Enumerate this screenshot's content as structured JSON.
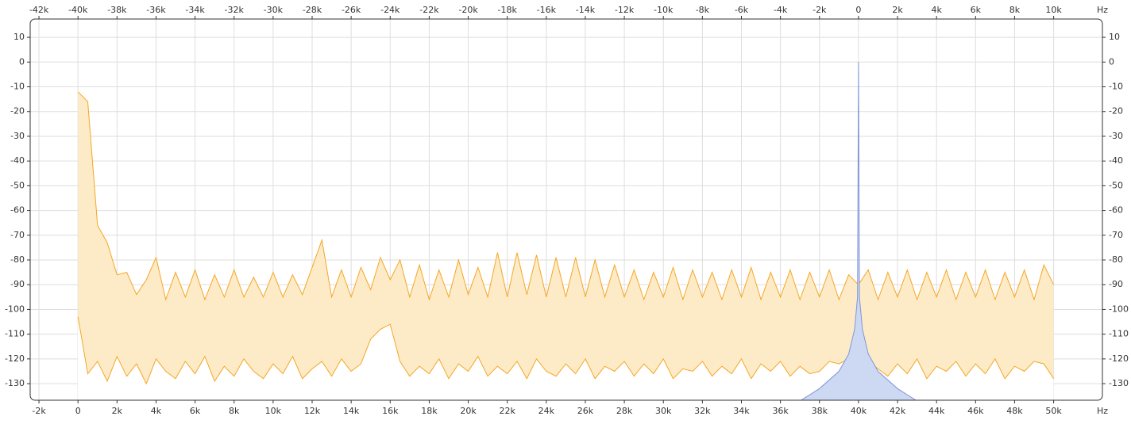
{
  "chart_data": {
    "type": "area",
    "x_unit": "Hz",
    "grid": true,
    "xlim": [
      -2450,
      52500
    ],
    "x2lim": [
      -42450,
      12500
    ],
    "ylim": [
      -136.7,
      17.4
    ],
    "xticks": [
      {
        "value": -2000,
        "label": "-2k"
      },
      0,
      {
        "value": 2000,
        "label": "2k"
      },
      {
        "value": 4000,
        "label": "4k"
      },
      {
        "value": 6000,
        "label": "6k"
      },
      {
        "value": 8000,
        "label": "8k"
      },
      {
        "value": 10000,
        "label": "10k"
      },
      {
        "value": 12000,
        "label": "12k"
      },
      {
        "value": 14000,
        "label": "14k"
      },
      {
        "value": 16000,
        "label": "16k"
      },
      {
        "value": 18000,
        "label": "18k"
      },
      {
        "value": 20000,
        "label": "20k"
      },
      {
        "value": 22000,
        "label": "22k"
      },
      {
        "value": 24000,
        "label": "24k"
      },
      {
        "value": 26000,
        "label": "26k"
      },
      {
        "value": 28000,
        "label": "28k"
      },
      {
        "value": 30000,
        "label": "30k"
      },
      {
        "value": 32000,
        "label": "32k"
      },
      {
        "value": 34000,
        "label": "34k"
      },
      {
        "value": 36000,
        "label": "36k"
      },
      {
        "value": 38000,
        "label": "38k"
      },
      {
        "value": 40000,
        "label": "40k"
      },
      {
        "value": 42000,
        "label": "42k"
      },
      {
        "value": 44000,
        "label": "44k"
      },
      {
        "value": 46000,
        "label": "46k"
      },
      {
        "value": 48000,
        "label": "48k"
      },
      {
        "value": 50000,
        "label": "50k"
      }
    ],
    "x2ticks": [
      {
        "value": -42000,
        "label": "-42k"
      },
      {
        "value": -40000,
        "label": "-40k"
      },
      {
        "value": -38000,
        "label": "-38k"
      },
      {
        "value": -36000,
        "label": "-36k"
      },
      {
        "value": -34000,
        "label": "-34k"
      },
      {
        "value": -32000,
        "label": "-32k"
      },
      {
        "value": -30000,
        "label": "-30k"
      },
      {
        "value": -28000,
        "label": "-28k"
      },
      {
        "value": -26000,
        "label": "-26k"
      },
      {
        "value": -24000,
        "label": "-24k"
      },
      {
        "value": -22000,
        "label": "-22k"
      },
      {
        "value": -20000,
        "label": "-20k"
      },
      {
        "value": -18000,
        "label": "-18k"
      },
      {
        "value": -16000,
        "label": "-16k"
      },
      {
        "value": -14000,
        "label": "-14k"
      },
      {
        "value": -12000,
        "label": "-12k"
      },
      {
        "value": -10000,
        "label": "-10k"
      },
      {
        "value": -8000,
        "label": "-8k"
      },
      {
        "value": -6000,
        "label": "-6k"
      },
      {
        "value": -4000,
        "label": "-4k"
      },
      {
        "value": -2000,
        "label": "-2k"
      },
      0,
      {
        "value": 2000,
        "label": "2k"
      },
      {
        "value": 4000,
        "label": "4k"
      },
      {
        "value": 6000,
        "label": "6k"
      },
      {
        "value": 8000,
        "label": "8k"
      },
      {
        "value": 10000,
        "label": "10k"
      }
    ],
    "yticks": [
      10,
      0,
      -10,
      -20,
      -30,
      -40,
      -50,
      -60,
      -70,
      -80,
      -90,
      -100,
      -110,
      -120,
      -130
    ],
    "x": [
      0,
      500,
      1000,
      1500,
      2000,
      2500,
      3000,
      3500,
      4000,
      4500,
      5000,
      5500,
      6000,
      6500,
      7000,
      7500,
      8000,
      8500,
      9000,
      9500,
      10000,
      10500,
      11000,
      11500,
      12000,
      12500,
      13000,
      13500,
      14000,
      14500,
      15000,
      15500,
      16000,
      16500,
      17000,
      17500,
      18000,
      18500,
      19000,
      19500,
      20000,
      20500,
      21000,
      21500,
      22000,
      22500,
      23000,
      23500,
      24000,
      24500,
      25000,
      25500,
      26000,
      26500,
      27000,
      27500,
      28000,
      28500,
      29000,
      29500,
      30000,
      30500,
      31000,
      31500,
      32000,
      32500,
      33000,
      33500,
      34000,
      34500,
      35000,
      35500,
      36000,
      36500,
      37000,
      37500,
      38000,
      38500,
      39000,
      39500,
      40000,
      40500,
      41000,
      41500,
      42000,
      42500,
      43000,
      43500,
      44000,
      44500,
      45000,
      45500,
      46000,
      46500,
      47000,
      47500,
      48000,
      48500,
      49000,
      49500,
      50000
    ],
    "series": [
      {
        "color": "#f5a623",
        "fill": "#fdebc8",
        "values": [
          -12,
          -16,
          -66,
          -73,
          -86,
          -85,
          -94,
          -88,
          -79,
          -96,
          -85,
          -95,
          -84,
          -96,
          -86,
          -95,
          -84,
          -95,
          -87,
          -95,
          -85,
          -95,
          -86,
          -94,
          -83,
          -72,
          -95,
          -84,
          -95,
          -83,
          -92,
          -79,
          -88,
          -80,
          -95,
          -82,
          -96,
          -84,
          -95,
          -80,
          -94,
          -83,
          -95,
          -77,
          -95,
          -77,
          -94,
          -78,
          -95,
          -79,
          -95,
          -79,
          -95,
          -80,
          -95,
          -82,
          -95,
          -84,
          -96,
          -85,
          -95,
          -83,
          -96,
          -84,
          -95,
          -85,
          -96,
          -84,
          -95,
          -83,
          -96,
          -85,
          -95,
          -84,
          -96,
          -85,
          -95,
          -84,
          -96,
          -86,
          -90,
          -84,
          -96,
          -85,
          -95,
          -84,
          -96,
          -85,
          -95,
          -84,
          -96,
          -85,
          -95,
          -84,
          -96,
          -85,
          -95,
          -84,
          -96,
          -82,
          -90
        ]
      },
      {
        "color": "#f5a623",
        "fill": "#ffffff",
        "values": [
          -103,
          -126,
          -121,
          -129,
          -119,
          -127,
          -122,
          -130,
          -120,
          -125,
          -128,
          -121,
          -126,
          -119,
          -129,
          -123,
          -127,
          -120,
          -125,
          -128,
          -122,
          -126,
          -119,
          -128,
          -124,
          -121,
          -127,
          -120,
          -125,
          -122,
          -112,
          -108,
          -106,
          -121,
          -127,
          -123,
          -126,
          -120,
          -128,
          -122,
          -125,
          -119,
          -127,
          -123,
          -126,
          -121,
          -128,
          -120,
          -125,
          -127,
          -122,
          -126,
          -120,
          -128,
          -123,
          -125,
          -121,
          -127,
          -122,
          -126,
          -120,
          -128,
          -124,
          -125,
          -121,
          -127,
          -123,
          -126,
          -120,
          -128,
          -122,
          -125,
          -121,
          -127,
          -123,
          -126,
          -125,
          -121,
          -122,
          -120,
          -118,
          -121,
          -124,
          -127,
          -122,
          -126,
          -120,
          -128,
          -123,
          -125,
          -121,
          -127,
          -122,
          -126,
          -120,
          -128,
          -123,
          -125,
          -121,
          -122,
          -128
        ]
      },
      {
        "color": "#7f95d9",
        "fill": "#cdd8f3",
        "x": [
          37000,
          38000,
          39000,
          39500,
          39800,
          39950,
          40000,
          40050,
          40200,
          40500,
          41000,
          42000,
          43000
        ],
        "values": [
          -137,
          -132,
          -125,
          -118,
          -108,
          -95,
          0,
          -95,
          -108,
          -118,
          -125,
          -132,
          -137
        ]
      }
    ]
  }
}
